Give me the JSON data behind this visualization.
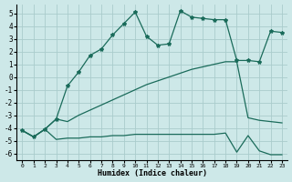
{
  "xlabel": "Humidex (Indice chaleur)",
  "bg_color": "#cde8e8",
  "grid_color": "#aacccc",
  "line_color": "#1a6b5a",
  "xlim": [
    -0.5,
    23.5
  ],
  "ylim": [
    -6.5,
    5.7
  ],
  "yticks": [
    -6,
    -5,
    -4,
    -3,
    -2,
    -1,
    0,
    1,
    2,
    3,
    4,
    5
  ],
  "xticks": [
    0,
    1,
    2,
    3,
    4,
    5,
    6,
    7,
    8,
    9,
    10,
    11,
    12,
    13,
    14,
    15,
    16,
    17,
    18,
    19,
    20,
    21,
    22,
    23
  ],
  "series1_x": [
    0,
    1,
    2,
    3,
    4,
    5,
    6,
    7,
    8,
    9,
    10,
    11,
    12,
    13,
    14,
    15,
    16,
    17,
    18,
    19,
    20,
    21,
    22,
    23
  ],
  "series1_y": [
    -4.2,
    -4.7,
    -4.1,
    -4.9,
    -4.8,
    -4.8,
    -4.7,
    -4.7,
    -4.6,
    -4.6,
    -4.5,
    -4.5,
    -4.5,
    -4.5,
    -4.5,
    -4.5,
    -4.5,
    -4.5,
    -4.4,
    -5.9,
    -4.6,
    -5.8,
    -6.1,
    -6.1
  ],
  "series2_x": [
    0,
    1,
    2,
    3,
    4,
    5,
    6,
    7,
    8,
    9,
    10,
    11,
    12,
    13,
    14,
    15,
    16,
    17,
    18,
    19,
    20,
    21,
    22,
    23
  ],
  "series2_y": [
    -4.2,
    -4.7,
    -4.1,
    -3.3,
    -3.5,
    -3.0,
    -2.6,
    -2.2,
    -1.8,
    -1.4,
    -1.0,
    -0.6,
    -0.3,
    0.0,
    0.3,
    0.6,
    0.8,
    1.0,
    1.2,
    1.2,
    -3.2,
    -3.4,
    -3.5,
    -3.6
  ],
  "series3_x": [
    0,
    1,
    2,
    3,
    4,
    5,
    6,
    7,
    8,
    9,
    10,
    11,
    12,
    13,
    14,
    15,
    16,
    17,
    18,
    19,
    20,
    21,
    22,
    23
  ],
  "series3_y": [
    -4.2,
    -4.7,
    -4.1,
    -3.3,
    -0.7,
    0.4,
    1.7,
    2.2,
    3.3,
    4.2,
    5.1,
    3.2,
    2.5,
    2.6,
    5.2,
    4.7,
    4.6,
    4.5,
    4.5,
    1.3,
    1.3,
    1.2,
    3.6,
    3.5
  ]
}
